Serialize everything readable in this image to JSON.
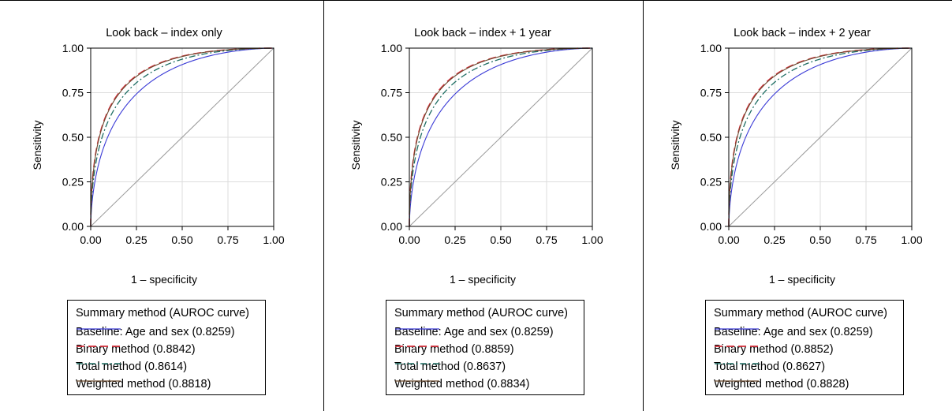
{
  "colors": {
    "baseline": "#3a3ad6",
    "binary": "#d22e3a",
    "total": "#1f6f64",
    "weighted": "#6b4a2f",
    "reference": "#9a9a9a",
    "grid": "#dcdcdc"
  },
  "chart_data": [
    {
      "type": "line",
      "title": "Look back – index only",
      "xlabel": "1 – specificity",
      "ylabel": "Sensitivity",
      "xlim": [
        0,
        1
      ],
      "ylim": [
        0,
        1
      ],
      "ticks": [
        "0.00",
        "0.25",
        "0.50",
        "0.75",
        "1.00"
      ],
      "grid": true,
      "legend": {
        "title": "Summary method (AUROC curve)",
        "entries": [
          "Baseline: Age and sex (0.8259)",
          "Binary method (0.8842)",
          "Total method (0.8614)",
          "Weighted method (0.8818)"
        ],
        "placement": "bottom"
      },
      "series": [
        {
          "key": "baseline",
          "auroc": 0.8259
        },
        {
          "key": "binary",
          "auroc": 0.8842
        },
        {
          "key": "total",
          "auroc": 0.8614
        },
        {
          "key": "weighted",
          "auroc": 0.8818
        }
      ]
    },
    {
      "type": "line",
      "title": "Look back – index + 1 year",
      "xlabel": "1 – specificity",
      "ylabel": "Sensitivity",
      "xlim": [
        0,
        1
      ],
      "ylim": [
        0,
        1
      ],
      "ticks": [
        "0.00",
        "0.25",
        "0.50",
        "0.75",
        "1.00"
      ],
      "grid": true,
      "legend": {
        "title": "Summary method (AUROC curve)",
        "entries": [
          "Baseline: Age and sex (0.8259)",
          "Binary method (0.8859)",
          "Total method (0.8637)",
          "Weighted method (0.8834)"
        ],
        "placement": "bottom"
      },
      "series": [
        {
          "key": "baseline",
          "auroc": 0.8259
        },
        {
          "key": "binary",
          "auroc": 0.8859
        },
        {
          "key": "total",
          "auroc": 0.8637
        },
        {
          "key": "weighted",
          "auroc": 0.8834
        }
      ]
    },
    {
      "type": "line",
      "title": "Look back – index + 2 year",
      "xlabel": "1 – specificity",
      "ylabel": "Sensitivity",
      "xlim": [
        0,
        1
      ],
      "ylim": [
        0,
        1
      ],
      "ticks": [
        "0.00",
        "0.25",
        "0.50",
        "0.75",
        "1.00"
      ],
      "grid": true,
      "legend": {
        "title": "Summary method (AUROC curve)",
        "entries": [
          "Baseline: Age and sex (0.8259)",
          "Binary method (0.8852)",
          "Total method (0.8627)",
          "Weighted method (0.8828)"
        ],
        "placement": "bottom"
      },
      "series": [
        {
          "key": "baseline",
          "auroc": 0.8259
        },
        {
          "key": "binary",
          "auroc": 0.8852
        },
        {
          "key": "total",
          "auroc": 0.8627
        },
        {
          "key": "weighted",
          "auroc": 0.8828
        }
      ]
    }
  ]
}
